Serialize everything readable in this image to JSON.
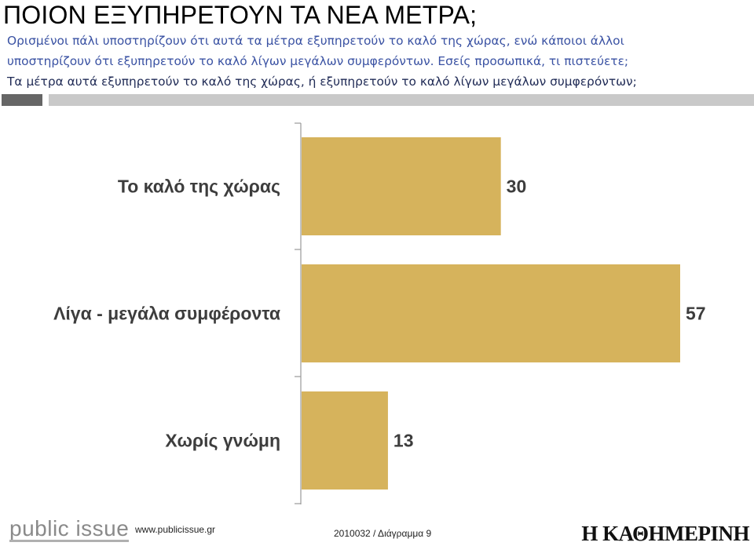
{
  "page": {
    "title": "ΠΟΙΟΝ ΕΞΥΠΗΡΕΤΟΥΝ ΤΑ ΝΕΑ ΜΕΤΡΑ;",
    "question_lines": [
      "Ορισμένοι πάλι υποστηρίζουν ότι αυτά τα μέτρα εξυπηρετούν το καλό της χώρας, ενώ κάποιοι άλλοι",
      "υποστηρίζουν ότι εξυπηρετούν το καλό λίγων μεγάλων συμφερόντων. Εσείς προσωπικά, τι πιστεύετε;",
      "Τα μέτρα αυτά εξυπηρετούν το καλό της χώρας, ή εξυπηρετούν το καλό λίγων μεγάλων συμφερόντων;"
    ]
  },
  "chart_data": {
    "type": "bar",
    "orientation": "horizontal",
    "categories": [
      "Το καλό της χώρας",
      "Λίγα - μεγάλα συμφέροντα",
      "Χωρίς γνώμη"
    ],
    "values": [
      30,
      57,
      13
    ],
    "data_labels": [
      "30",
      "57",
      "13"
    ],
    "xlim": [
      0,
      60
    ],
    "bar_color": "#D6B35C",
    "grid": false
  },
  "footer": {
    "logo_text": "public issue",
    "url": "www.publicissue.gr",
    "ref": "2010032 / Διάγραμμα 9",
    "brand": "Η ΚΑΘΗΜΕΡΙΝΗ"
  },
  "colors": {
    "question_text": "#3a52a3",
    "question_emphasis": "#1f2a55",
    "label_text": "#3d3d3d",
    "axis": "#999999"
  }
}
